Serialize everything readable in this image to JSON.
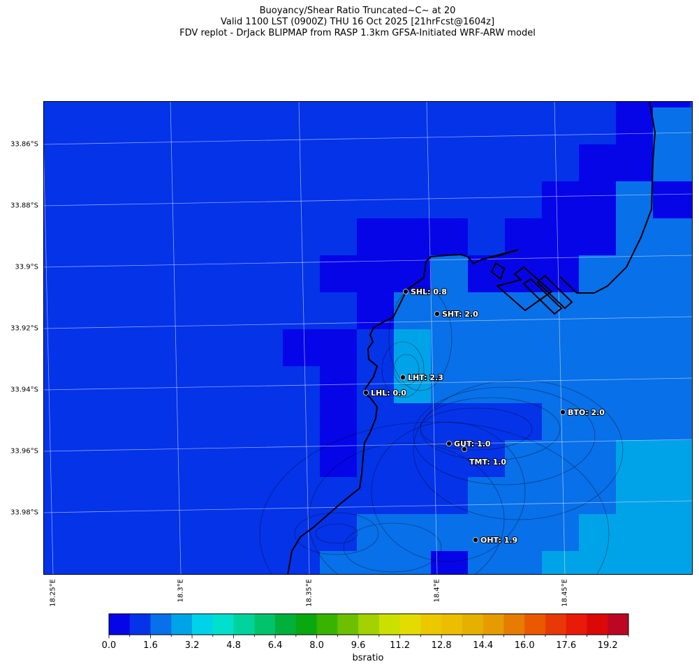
{
  "title": {
    "line1": "Buoyancy/Shear Ratio Truncated~C~    at 20",
    "line2": "Valid 1100 LST (0900Z) THU 16 Oct 2025 [21hrFcst@1604z]",
    "line3": "FDV replot - DrJack BLIPMAP from RASP 1.3km GFSA-Initiated WRF-ARW model"
  },
  "chart_data": {
    "type": "heatmap",
    "variable": "bsratio",
    "lat_ticks": [
      "33.86°S",
      "33.88°S",
      "33.9°S",
      "33.92°S",
      "33.94°S",
      "33.96°S",
      "33.98°S"
    ],
    "lon_ticks": [
      "18.25°E",
      "18.3°E",
      "18.35°E",
      "18.4°E",
      "18.45°E"
    ],
    "colorbar": {
      "label": "bsratio",
      "range": [
        0,
        20
      ],
      "step": 0.8,
      "tick_labels": [
        "0.0",
        "1.6",
        "3.2",
        "4.8",
        "6.4",
        "8.0",
        "9.6",
        "11.2",
        "12.8",
        "14.4",
        "16.0",
        "17.6",
        "19.2"
      ],
      "colors": [
        "#0505e8",
        "#0433e8",
        "#0870e8",
        "#00a2e8",
        "#00d2ea",
        "#00e0cc",
        "#00d49c",
        "#00c36c",
        "#00b03a",
        "#0aa810",
        "#38b400",
        "#6cc000",
        "#a2d200",
        "#cce000",
        "#e4dc00",
        "#ecc800",
        "#ecbd00",
        "#e6b000",
        "#e69c00",
        "#e67c00",
        "#ea5800",
        "#e83808",
        "#e81a08",
        "#dc0808",
        "#bc0624"
      ]
    },
    "grid_levels_default": 1,
    "grid_levels": [
      [
        1,
        1,
        1,
        1,
        1,
        1,
        1,
        1,
        1,
        1,
        1,
        1,
        1,
        1,
        1,
        1,
        0,
        0,
        1
      ],
      [
        1,
        1,
        1,
        1,
        1,
        1,
        1,
        1,
        1,
        1,
        1,
        1,
        1,
        1,
        1,
        1,
        0,
        2,
        2
      ],
      [
        1,
        1,
        1,
        1,
        1,
        1,
        1,
        1,
        1,
        1,
        1,
        1,
        1,
        1,
        1,
        0,
        0,
        2,
        2
      ],
      [
        1,
        1,
        1,
        1,
        1,
        1,
        1,
        1,
        1,
        1,
        1,
        1,
        1,
        1,
        0,
        0,
        2,
        0,
        0
      ],
      [
        1,
        1,
        1,
        1,
        1,
        1,
        1,
        1,
        1,
        0,
        0,
        0,
        1,
        0,
        0,
        0,
        2,
        2,
        2
      ],
      [
        1,
        1,
        1,
        1,
        1,
        1,
        1,
        1,
        0,
        0,
        0,
        2,
        0,
        0,
        0,
        2,
        2,
        2,
        2
      ],
      [
        1,
        1,
        1,
        1,
        1,
        1,
        1,
        1,
        1,
        0,
        2,
        2,
        2,
        2,
        2,
        2,
        2,
        2,
        2
      ],
      [
        1,
        1,
        1,
        1,
        1,
        1,
        1,
        0,
        0,
        1,
        3,
        2,
        2,
        2,
        2,
        2,
        2,
        2,
        2
      ],
      [
        1,
        1,
        1,
        1,
        1,
        1,
        1,
        1,
        0,
        1,
        3,
        2,
        2,
        2,
        2,
        2,
        2,
        2,
        2
      ],
      [
        1,
        1,
        1,
        1,
        1,
        1,
        1,
        1,
        0,
        1,
        1,
        1,
        1,
        1,
        2,
        2,
        2,
        2,
        2
      ],
      [
        1,
        1,
        1,
        1,
        1,
        1,
        1,
        1,
        0,
        1,
        1,
        1,
        1,
        2,
        2,
        2,
        3,
        3,
        3
      ],
      [
        1,
        1,
        1,
        1,
        1,
        1,
        1,
        1,
        1,
        1,
        1,
        1,
        2,
        2,
        2,
        2,
        3,
        3,
        3
      ],
      [
        1,
        1,
        1,
        1,
        1,
        1,
        1,
        1,
        1,
        2,
        2,
        2,
        2,
        2,
        2,
        3,
        3,
        3,
        3
      ],
      [
        1,
        1,
        1,
        1,
        1,
        1,
        1,
        1,
        2,
        2,
        2,
        0,
        2,
        2,
        3,
        3,
        3,
        3,
        3
      ]
    ],
    "stations": [
      {
        "id": "SHL",
        "label": "SHL: 0.8",
        "value": 0.8
      },
      {
        "id": "SHT",
        "label": "SHT: 2.0",
        "value": 2.0
      },
      {
        "id": "LHT",
        "label": "LHT: 2.3",
        "value": 2.3
      },
      {
        "id": "LHL",
        "label": "LHL: 0.0",
        "value": 0.0
      },
      {
        "id": "BTO",
        "label": "BTO: 2.0",
        "value": 2.0
      },
      {
        "id": "GUT",
        "label": "GUT: 1.0",
        "value": 1.0
      },
      {
        "id": "TMT",
        "label": "TMT: 1.0",
        "value": 1.0
      },
      {
        "id": "OHT",
        "label": "OHT: 1.9",
        "value": 1.9
      }
    ]
  }
}
